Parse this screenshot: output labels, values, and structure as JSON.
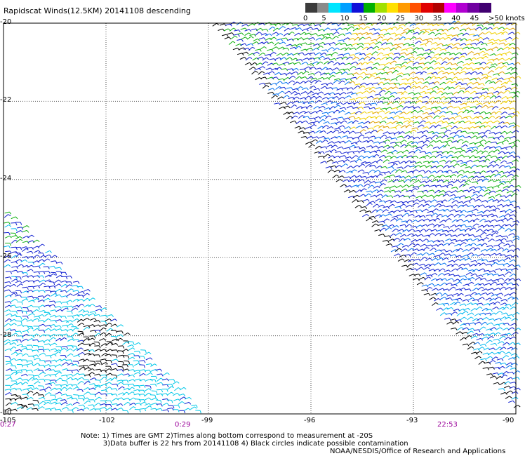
{
  "title": "Rapidscat Winds(12.5KM) 20141108 descending",
  "legend": {
    "labels": [
      "0",
      "5",
      "10",
      "15",
      "20",
      "25",
      "30",
      "35",
      "40",
      "45",
      ">50 knots"
    ],
    "colors": [
      "#3b3b3b",
      "#8a8a8a",
      "#00e5ff",
      "#00a0ff",
      "#1010d8",
      "#00b000",
      "#a0e000",
      "#ffe000",
      "#ff9a00",
      "#ff5000",
      "#e00000",
      "#b00000",
      "#ff00ff",
      "#b000d0",
      "#7000a0",
      "#400070"
    ]
  },
  "map": {
    "lon_range": [
      -105,
      -90
    ],
    "lat_range": [
      -30,
      -20
    ],
    "y_ticks": [
      "-20",
      "-22",
      "-24",
      "-26",
      "-28",
      "-30"
    ],
    "x_ticks": [
      "-105",
      "-102",
      "-99",
      "-96",
      "-93",
      "-90"
    ],
    "time_labels": [
      "0:27",
      "0:29",
      "22:53"
    ]
  },
  "notes": {
    "line1": "Note: 1) Times are GMT 2)Times along bottom correspond to measurement at -20S",
    "line2": "3)Data buffer is 22 hrs from 20141108 4) Black circles indicate possible contamination"
  },
  "credit": "NOAA/NESDIS/Office of Research and Applications"
}
